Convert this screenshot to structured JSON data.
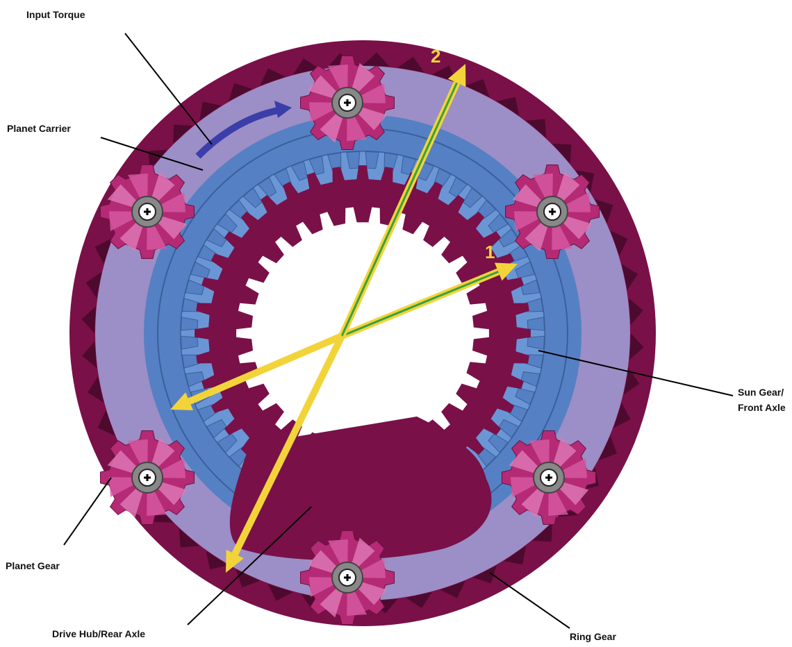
{
  "labels": {
    "input_torque": "Input Torque",
    "planet_carrier": "Planet Carrier",
    "sun_gear": [
      "Sun Gear/",
      "Front Axle"
    ],
    "planet_gear": "Planet Gear",
    "drive_hub": "Drive Hub/Rear Axle",
    "ring_gear": "Ring Gear"
  },
  "arrows": [
    "1",
    "2"
  ]
}
